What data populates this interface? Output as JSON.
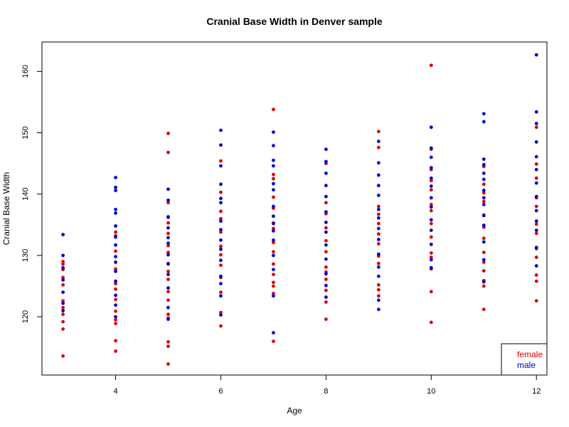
{
  "chart_data": {
    "type": "scatter",
    "title": "Cranial Base Width in Denver sample",
    "xlabel": "Age",
    "ylabel": "Cranial Base Width",
    "xlim": [
      2.6,
      12.2
    ],
    "ylim": [
      110.5,
      164.8
    ],
    "xticks": [
      4,
      6,
      8,
      10,
      12
    ],
    "yticks": [
      120,
      130,
      140,
      150,
      160
    ],
    "grid": false,
    "legend": {
      "position": "bottom-right",
      "entries": [
        {
          "label": "female",
          "color": "#dd0000"
        },
        {
          "label": "male",
          "color": "#0000cc"
        }
      ]
    },
    "series": [
      {
        "name": "female",
        "color": "#dd0000",
        "points": [
          [
            3,
            113.6
          ],
          [
            3,
            118.0
          ],
          [
            3,
            119.2
          ],
          [
            3,
            120.4
          ],
          [
            3,
            121.5
          ],
          [
            3,
            122.6
          ],
          [
            3,
            125.2
          ],
          [
            3,
            126.4
          ],
          [
            3,
            127.7
          ],
          [
            3,
            128.6
          ],
          [
            3,
            129.0
          ],
          [
            4,
            114.4
          ],
          [
            4,
            116.1
          ],
          [
            4,
            118.9
          ],
          [
            4,
            119.5
          ],
          [
            4,
            120.9
          ],
          [
            4,
            122.8
          ],
          [
            4,
            124.5
          ],
          [
            4,
            125.4
          ],
          [
            4,
            127.8
          ],
          [
            4,
            130.7
          ],
          [
            4,
            133.2
          ],
          [
            4,
            133.8
          ],
          [
            5,
            112.3
          ],
          [
            5,
            115.2
          ],
          [
            5,
            115.9
          ],
          [
            5,
            119.8
          ],
          [
            5,
            120.4
          ],
          [
            5,
            122.7
          ],
          [
            5,
            124.1
          ],
          [
            5,
            126.1
          ],
          [
            5,
            127.4
          ],
          [
            5,
            128.7
          ],
          [
            5,
            130.5
          ],
          [
            5,
            131.6
          ],
          [
            5,
            133.6
          ],
          [
            5,
            135.3
          ],
          [
            5,
            136.2
          ],
          [
            5,
            138.6
          ],
          [
            5,
            146.8
          ],
          [
            5,
            149.9
          ],
          [
            6,
            118.5
          ],
          [
            6,
            120.7
          ],
          [
            6,
            124.0
          ],
          [
            6,
            126.4
          ],
          [
            6,
            128.4
          ],
          [
            6,
            130.1
          ],
          [
            6,
            131.5
          ],
          [
            6,
            133.8
          ],
          [
            6,
            136.0
          ],
          [
            6,
            137.2
          ],
          [
            6,
            140.3
          ],
          [
            6,
            145.4
          ],
          [
            7,
            116.0
          ],
          [
            7,
            123.8
          ],
          [
            7,
            125.0
          ],
          [
            7,
            125.6
          ],
          [
            7,
            126.9
          ],
          [
            7,
            128.6
          ],
          [
            7,
            130.6
          ],
          [
            7,
            132.1
          ],
          [
            7,
            134.4
          ],
          [
            7,
            135.3
          ],
          [
            7,
            137.7
          ],
          [
            7,
            139.5
          ],
          [
            7,
            142.5
          ],
          [
            7,
            143.2
          ],
          [
            7,
            153.8
          ],
          [
            8,
            119.6
          ],
          [
            8,
            122.4
          ],
          [
            8,
            124.3
          ],
          [
            8,
            126.1
          ],
          [
            8,
            127.3
          ],
          [
            8,
            128.1
          ],
          [
            8,
            130.6
          ],
          [
            8,
            132.4
          ],
          [
            8,
            134.5
          ],
          [
            8,
            136.8
          ],
          [
            8,
            138.6
          ],
          [
            8,
            145.0
          ],
          [
            9,
            123.4
          ],
          [
            9,
            124.4
          ],
          [
            9,
            125.2
          ],
          [
            9,
            128.7
          ],
          [
            9,
            129.9
          ],
          [
            9,
            131.9
          ],
          [
            9,
            133.5
          ],
          [
            9,
            135.2
          ],
          [
            9,
            136.7
          ],
          [
            9,
            138.0
          ],
          [
            9,
            147.6
          ],
          [
            9,
            150.2
          ],
          [
            10,
            119.1
          ],
          [
            10,
            124.1
          ],
          [
            10,
            127.8
          ],
          [
            10,
            129.7
          ],
          [
            10,
            130.4
          ],
          [
            10,
            133.0
          ],
          [
            10,
            135.2
          ],
          [
            10,
            137.3
          ],
          [
            10,
            138.3
          ],
          [
            10,
            140.7
          ],
          [
            10,
            142.2
          ],
          [
            10,
            144.0
          ],
          [
            10,
            147.3
          ],
          [
            10,
            161.0
          ],
          [
            11,
            121.2
          ],
          [
            11,
            125.0
          ],
          [
            11,
            125.9
          ],
          [
            11,
            127.5
          ],
          [
            11,
            128.9
          ],
          [
            11,
            130.5
          ],
          [
            11,
            132.8
          ],
          [
            11,
            134.6
          ],
          [
            11,
            136.6
          ],
          [
            11,
            138.8
          ],
          [
            11,
            140.2
          ],
          [
            11,
            141.6
          ],
          [
            11,
            144.5
          ],
          [
            12,
            122.6
          ],
          [
            12,
            125.8
          ],
          [
            12,
            126.8
          ],
          [
            12,
            129.7
          ],
          [
            12,
            131.1
          ],
          [
            12,
            133.6
          ],
          [
            12,
            135.1
          ],
          [
            12,
            138.0
          ],
          [
            12,
            139.4
          ],
          [
            12,
            142.6
          ],
          [
            12,
            144.9
          ],
          [
            12,
            150.9
          ]
        ]
      },
      {
        "name": "male",
        "color": "#0000cc",
        "points": [
          [
            3,
            121.0
          ],
          [
            3,
            122.2
          ],
          [
            3,
            124.0
          ],
          [
            3,
            126.0
          ],
          [
            3,
            128.0
          ],
          [
            3,
            130.0
          ],
          [
            3,
            133.4
          ],
          [
            4,
            120.0
          ],
          [
            4,
            121.9
          ],
          [
            4,
            123.5
          ],
          [
            4,
            125.8
          ],
          [
            4,
            127.4
          ],
          [
            4,
            128.9
          ],
          [
            4,
            129.8
          ],
          [
            4,
            131.7
          ],
          [
            4,
            133.0
          ],
          [
            4,
            134.8
          ],
          [
            4,
            136.9
          ],
          [
            4,
            137.5
          ],
          [
            4,
            140.6
          ],
          [
            4,
            141.1
          ],
          [
            4,
            142.7
          ],
          [
            5,
            119.6
          ],
          [
            5,
            121.5
          ],
          [
            5,
            124.7
          ],
          [
            5,
            126.9
          ],
          [
            5,
            128.6
          ],
          [
            5,
            130.1
          ],
          [
            5,
            132.0
          ],
          [
            5,
            132.9
          ],
          [
            5,
            134.5
          ],
          [
            5,
            136.3
          ],
          [
            5,
            139.0
          ],
          [
            5,
            140.8
          ],
          [
            6,
            120.3
          ],
          [
            6,
            123.4
          ],
          [
            6,
            125.4
          ],
          [
            6,
            126.6
          ],
          [
            6,
            129.2
          ],
          [
            6,
            131.0
          ],
          [
            6,
            132.5
          ],
          [
            6,
            134.2
          ],
          [
            6,
            135.6
          ],
          [
            6,
            138.6
          ],
          [
            6,
            139.3
          ],
          [
            6,
            141.6
          ],
          [
            6,
            144.6
          ],
          [
            6,
            148.0
          ],
          [
            6,
            150.4
          ],
          [
            7,
            117.4
          ],
          [
            7,
            123.4
          ],
          [
            7,
            127.7
          ],
          [
            7,
            130.0
          ],
          [
            7,
            132.5
          ],
          [
            7,
            134.0
          ],
          [
            7,
            135.2
          ],
          [
            7,
            136.4
          ],
          [
            7,
            138.0
          ],
          [
            7,
            140.7
          ],
          [
            7,
            141.7
          ],
          [
            7,
            144.6
          ],
          [
            7,
            145.5
          ],
          [
            7,
            147.9
          ],
          [
            7,
            150.1
          ],
          [
            8,
            123.2
          ],
          [
            8,
            125.1
          ],
          [
            8,
            127.0
          ],
          [
            8,
            129.4
          ],
          [
            8,
            131.7
          ],
          [
            8,
            133.8
          ],
          [
            8,
            135.4
          ],
          [
            8,
            137.1
          ],
          [
            8,
            139.6
          ],
          [
            8,
            141.4
          ],
          [
            8,
            143.4
          ],
          [
            8,
            145.3
          ],
          [
            8,
            147.3
          ],
          [
            9,
            121.2
          ],
          [
            9,
            122.7
          ],
          [
            9,
            126.6
          ],
          [
            9,
            128.1
          ],
          [
            9,
            130.2
          ],
          [
            9,
            132.6
          ],
          [
            9,
            134.4
          ],
          [
            9,
            136.1
          ],
          [
            9,
            137.5
          ],
          [
            9,
            139.8
          ],
          [
            9,
            141.4
          ],
          [
            9,
            143.1
          ],
          [
            9,
            145.1
          ],
          [
            9,
            148.6
          ],
          [
            10,
            128.0
          ],
          [
            10,
            129.3
          ],
          [
            10,
            131.8
          ],
          [
            10,
            134.1
          ],
          [
            10,
            135.8
          ],
          [
            10,
            137.9
          ],
          [
            10,
            139.4
          ],
          [
            10,
            141.3
          ],
          [
            10,
            142.6
          ],
          [
            10,
            144.3
          ],
          [
            10,
            146.0
          ],
          [
            10,
            147.5
          ],
          [
            10,
            150.9
          ],
          [
            11,
            125.7
          ],
          [
            11,
            129.3
          ],
          [
            11,
            132.2
          ],
          [
            11,
            134.9
          ],
          [
            11,
            136.5
          ],
          [
            11,
            138.3
          ],
          [
            11,
            139.4
          ],
          [
            11,
            140.6
          ],
          [
            11,
            142.4
          ],
          [
            11,
            143.4
          ],
          [
            11,
            144.8
          ],
          [
            11,
            145.7
          ],
          [
            11,
            151.8
          ],
          [
            11,
            153.1
          ],
          [
            12,
            128.3
          ],
          [
            12,
            131.3
          ],
          [
            12,
            134.1
          ],
          [
            12,
            135.6
          ],
          [
            12,
            137.3
          ],
          [
            12,
            139.6
          ],
          [
            12,
            141.8
          ],
          [
            12,
            144.0
          ],
          [
            12,
            146.1
          ],
          [
            12,
            148.5
          ],
          [
            12,
            151.5
          ],
          [
            12,
            153.4
          ],
          [
            12,
            162.7
          ]
        ]
      }
    ]
  }
}
